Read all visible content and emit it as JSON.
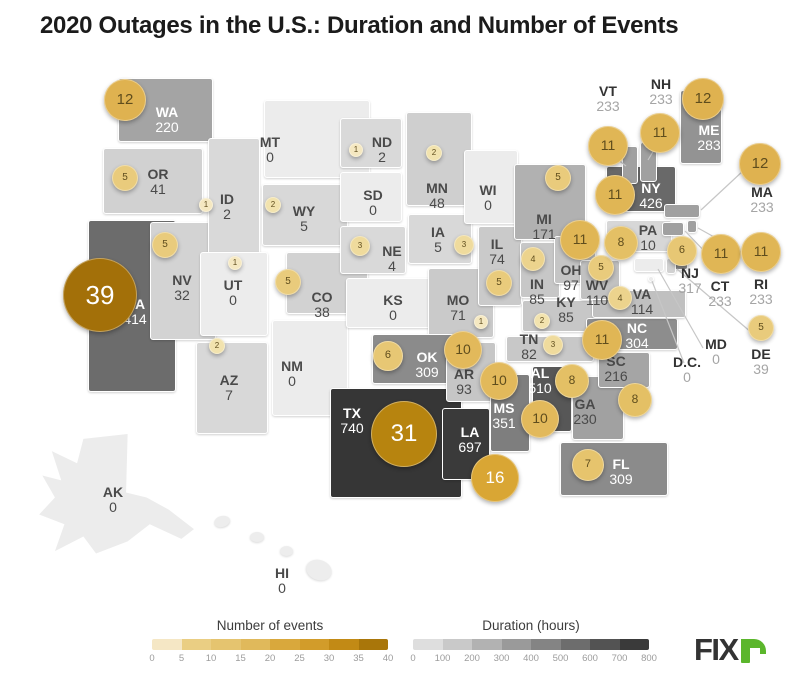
{
  "title": "2020 Outages in the U.S.: Duration and Number of Events",
  "map": {
    "states": [
      {
        "id": "WA",
        "abbr": "WA",
        "events": 12,
        "duration": 220,
        "light": true
      },
      {
        "id": "OR",
        "abbr": "OR",
        "events": 5,
        "duration": 41,
        "light": false
      },
      {
        "id": "CA",
        "abbr": "CA",
        "events": 39,
        "duration": 414,
        "light": true
      },
      {
        "id": "NV",
        "abbr": "NV",
        "events": 5,
        "duration": 32,
        "light": false
      },
      {
        "id": "ID",
        "abbr": "ID",
        "events": 1,
        "duration": 2,
        "light": false
      },
      {
        "id": "MT",
        "abbr": "MT",
        "events": null,
        "duration": 0,
        "light": false
      },
      {
        "id": "WY",
        "abbr": "WY",
        "events": 2,
        "duration": 5,
        "light": false
      },
      {
        "id": "UT",
        "abbr": "UT",
        "events": 1,
        "duration": 0,
        "light": false
      },
      {
        "id": "AZ",
        "abbr": "AZ",
        "events": 2,
        "duration": 7,
        "light": false
      },
      {
        "id": "NM",
        "abbr": "NM",
        "events": null,
        "duration": 0,
        "light": false
      },
      {
        "id": "CO",
        "abbr": "CO",
        "events": 5,
        "duration": 38,
        "light": false
      },
      {
        "id": "ND",
        "abbr": "ND",
        "events": 1,
        "duration": 2,
        "light": false
      },
      {
        "id": "SD",
        "abbr": "SD",
        "events": null,
        "duration": 0,
        "light": false
      },
      {
        "id": "NE",
        "abbr": "NE",
        "events": 3,
        "duration": 4,
        "light": false
      },
      {
        "id": "KS",
        "abbr": "KS",
        "events": null,
        "duration": 0,
        "light": false
      },
      {
        "id": "MN",
        "abbr": "MN",
        "events": 2,
        "duration": 48,
        "light": false
      },
      {
        "id": "IA",
        "abbr": "IA",
        "events": 3,
        "duration": 5,
        "light": false
      },
      {
        "id": "MO",
        "abbr": "MO",
        "events": 1,
        "duration": 71,
        "light": false
      },
      {
        "id": "WI",
        "abbr": "WI",
        "events": null,
        "duration": 0,
        "light": false
      },
      {
        "id": "IL",
        "abbr": "IL",
        "events": 5,
        "duration": 74,
        "light": false
      },
      {
        "id": "IN",
        "abbr": "IN",
        "events": 4,
        "duration": 85,
        "light": false
      },
      {
        "id": "MI",
        "abbr": "MI",
        "events": 5,
        "duration": 171,
        "light": false
      },
      {
        "id": "OH",
        "abbr": "OH",
        "events": 11,
        "duration": 97,
        "light": false
      },
      {
        "id": "KY",
        "abbr": "KY",
        "events": 2,
        "duration": 85,
        "light": false
      },
      {
        "id": "TN",
        "abbr": "TN",
        "events": 3,
        "duration": 82,
        "light": false
      },
      {
        "id": "OK",
        "abbr": "OK",
        "events": 6,
        "duration": 309,
        "light": true
      },
      {
        "id": "TX",
        "abbr": "TX",
        "events": 31,
        "duration": 740,
        "light": true
      },
      {
        "id": "AR",
        "abbr": "AR",
        "events": 10,
        "duration": 93,
        "light": false
      },
      {
        "id": "LA",
        "abbr": "LA",
        "events": 16,
        "duration": 697,
        "light": true
      },
      {
        "id": "MS",
        "abbr": "MS",
        "events": 10,
        "duration": 351,
        "light": true
      },
      {
        "id": "AL",
        "abbr": "AL",
        "events": 10,
        "duration": 510,
        "light": true
      },
      {
        "id": "GA",
        "abbr": "GA",
        "events": 8,
        "duration": 230,
        "light": false
      },
      {
        "id": "SC",
        "abbr": "SC",
        "events": 8,
        "duration": 216,
        "light": false
      },
      {
        "id": "FL",
        "abbr": "FL",
        "events": 7,
        "duration": 309,
        "light": true
      },
      {
        "id": "NC",
        "abbr": "NC",
        "events": 11,
        "duration": 304,
        "light": true
      },
      {
        "id": "VA",
        "abbr": "VA",
        "events": 4,
        "duration": 114,
        "light": false
      },
      {
        "id": "WV",
        "abbr": "WV",
        "events": 5,
        "duration": 110,
        "light": false
      },
      {
        "id": "PA",
        "abbr": "PA",
        "events": 8,
        "duration": 10,
        "light": false
      },
      {
        "id": "NY",
        "abbr": "NY",
        "events": 11,
        "duration": 426,
        "light": true
      },
      {
        "id": "NJ",
        "abbr": "NJ",
        "events": 6,
        "duration": 317,
        "light": false
      },
      {
        "id": "CT",
        "abbr": "CT",
        "events": 11,
        "duration": 233,
        "light": false
      },
      {
        "id": "RI",
        "abbr": "RI",
        "events": 11,
        "duration": 233,
        "light": false
      },
      {
        "id": "MA",
        "abbr": "MA",
        "events": 12,
        "duration": 233,
        "light": false
      },
      {
        "id": "VT",
        "abbr": "VT",
        "events": 11,
        "duration": 233,
        "light": false
      },
      {
        "id": "NH",
        "abbr": "NH",
        "events": 11,
        "duration": 233,
        "light": false
      },
      {
        "id": "ME",
        "abbr": "ME",
        "events": 12,
        "duration": 283,
        "light": true
      },
      {
        "id": "MD",
        "abbr": "MD",
        "events": null,
        "duration": 0,
        "light": false
      },
      {
        "id": "DE",
        "abbr": "DE",
        "events": 5,
        "duration": 39,
        "light": false
      },
      {
        "id": "DC",
        "abbr": "D.C.",
        "events": null,
        "duration": 0,
        "light": false
      },
      {
        "id": "AK",
        "abbr": "AK",
        "events": null,
        "duration": 0,
        "light": false
      },
      {
        "id": "HI",
        "abbr": "HI",
        "events": null,
        "duration": 0,
        "light": false
      }
    ]
  },
  "legends": {
    "events": {
      "title": "Number of events",
      "ticks": [
        "0",
        "5",
        "10",
        "15",
        "20",
        "25",
        "30",
        "35",
        "40"
      ],
      "segment_colors": [
        "#f5e7c5",
        "#eace83",
        "#e5c46f",
        "#e0b95b",
        "#d9a83c",
        "#d29c2a",
        "#c28a15",
        "#a9760a"
      ]
    },
    "duration": {
      "title": "Duration (hours)",
      "ticks": [
        "0",
        "100",
        "200",
        "300",
        "400",
        "500",
        "600",
        "700",
        "800"
      ],
      "segment_colors": [
        "#dedede",
        "#c9c9c9",
        "#b2b2b2",
        "#9a9a9a",
        "#848484",
        "#6d6d6d",
        "#535353",
        "#3a3a3a"
      ]
    }
  },
  "scales": {
    "duration_fill_stops": [
      [
        0,
        "#ececec"
      ],
      [
        2,
        "#d9d9d9"
      ],
      [
        50,
        "#cfcfcf"
      ],
      [
        100,
        "#c4c4c4"
      ],
      [
        200,
        "#a9a9a9"
      ],
      [
        300,
        "#8e8e8e"
      ],
      [
        400,
        "#6f6f6f"
      ],
      [
        500,
        "#595959"
      ],
      [
        600,
        "#474747"
      ],
      [
        700,
        "#3a3a3a"
      ],
      [
        800,
        "#2f2f2f"
      ]
    ],
    "events_color_stops": [
      [
        0,
        "#f7edd3"
      ],
      [
        2,
        "#f2e3ae"
      ],
      [
        5,
        "#e9cb7c"
      ],
      [
        8,
        "#e4c065"
      ],
      [
        12,
        "#dfb250"
      ],
      [
        16,
        "#d9a634"
      ],
      [
        25,
        "#cc9520"
      ],
      [
        31,
        "#b7840f"
      ],
      [
        40,
        "#a06e08"
      ]
    ],
    "bubble_text_dark": "#5f4d1d",
    "bubble_text_light": "#ffffff"
  },
  "logo": {
    "text_dark": "FIX",
    "text_green": "r",
    "green": "#5bb62c",
    "dark": "#333333"
  },
  "chart_data": {
    "type": "table",
    "title": "2020 Outages in the U.S.: Duration and Number of Events",
    "columns": [
      "state",
      "number_of_events",
      "duration_hours"
    ],
    "rows": [
      [
        "WA",
        12,
        220
      ],
      [
        "OR",
        5,
        41
      ],
      [
        "CA",
        39,
        414
      ],
      [
        "NV",
        5,
        32
      ],
      [
        "ID",
        1,
        2
      ],
      [
        "MT",
        null,
        0
      ],
      [
        "WY",
        2,
        5
      ],
      [
        "UT",
        1,
        0
      ],
      [
        "AZ",
        2,
        7
      ],
      [
        "NM",
        null,
        0
      ],
      [
        "CO",
        5,
        38
      ],
      [
        "ND",
        1,
        2
      ],
      [
        "SD",
        null,
        0
      ],
      [
        "NE",
        3,
        4
      ],
      [
        "KS",
        null,
        0
      ],
      [
        "MN",
        2,
        48
      ],
      [
        "IA",
        3,
        5
      ],
      [
        "MO",
        1,
        71
      ],
      [
        "WI",
        null,
        0
      ],
      [
        "IL",
        5,
        74
      ],
      [
        "IN",
        4,
        85
      ],
      [
        "MI",
        5,
        171
      ],
      [
        "OH",
        11,
        97
      ],
      [
        "KY",
        2,
        85
      ],
      [
        "TN",
        3,
        82
      ],
      [
        "OK",
        6,
        309
      ],
      [
        "TX",
        31,
        740
      ],
      [
        "AR",
        10,
        93
      ],
      [
        "LA",
        16,
        697
      ],
      [
        "MS",
        10,
        351
      ],
      [
        "AL",
        10,
        510
      ],
      [
        "GA",
        8,
        230
      ],
      [
        "SC",
        8,
        216
      ],
      [
        "FL",
        7,
        309
      ],
      [
        "NC",
        11,
        304
      ],
      [
        "VA",
        4,
        114
      ],
      [
        "WV",
        5,
        110
      ],
      [
        "PA",
        8,
        10
      ],
      [
        "NY",
        11,
        426
      ],
      [
        "NJ",
        6,
        317
      ],
      [
        "CT",
        11,
        233
      ],
      [
        "RI",
        11,
        233
      ],
      [
        "MA",
        12,
        233
      ],
      [
        "VT",
        11,
        233
      ],
      [
        "NH",
        11,
        233
      ],
      [
        "ME",
        12,
        283
      ],
      [
        "MD",
        null,
        0
      ],
      [
        "DE",
        5,
        39
      ],
      [
        "D.C.",
        null,
        0
      ],
      [
        "AK",
        null,
        0
      ],
      [
        "HI",
        null,
        0
      ]
    ],
    "legend": {
      "events_scale": [
        0,
        40
      ],
      "duration_scale_hours": [
        0,
        800
      ]
    }
  }
}
